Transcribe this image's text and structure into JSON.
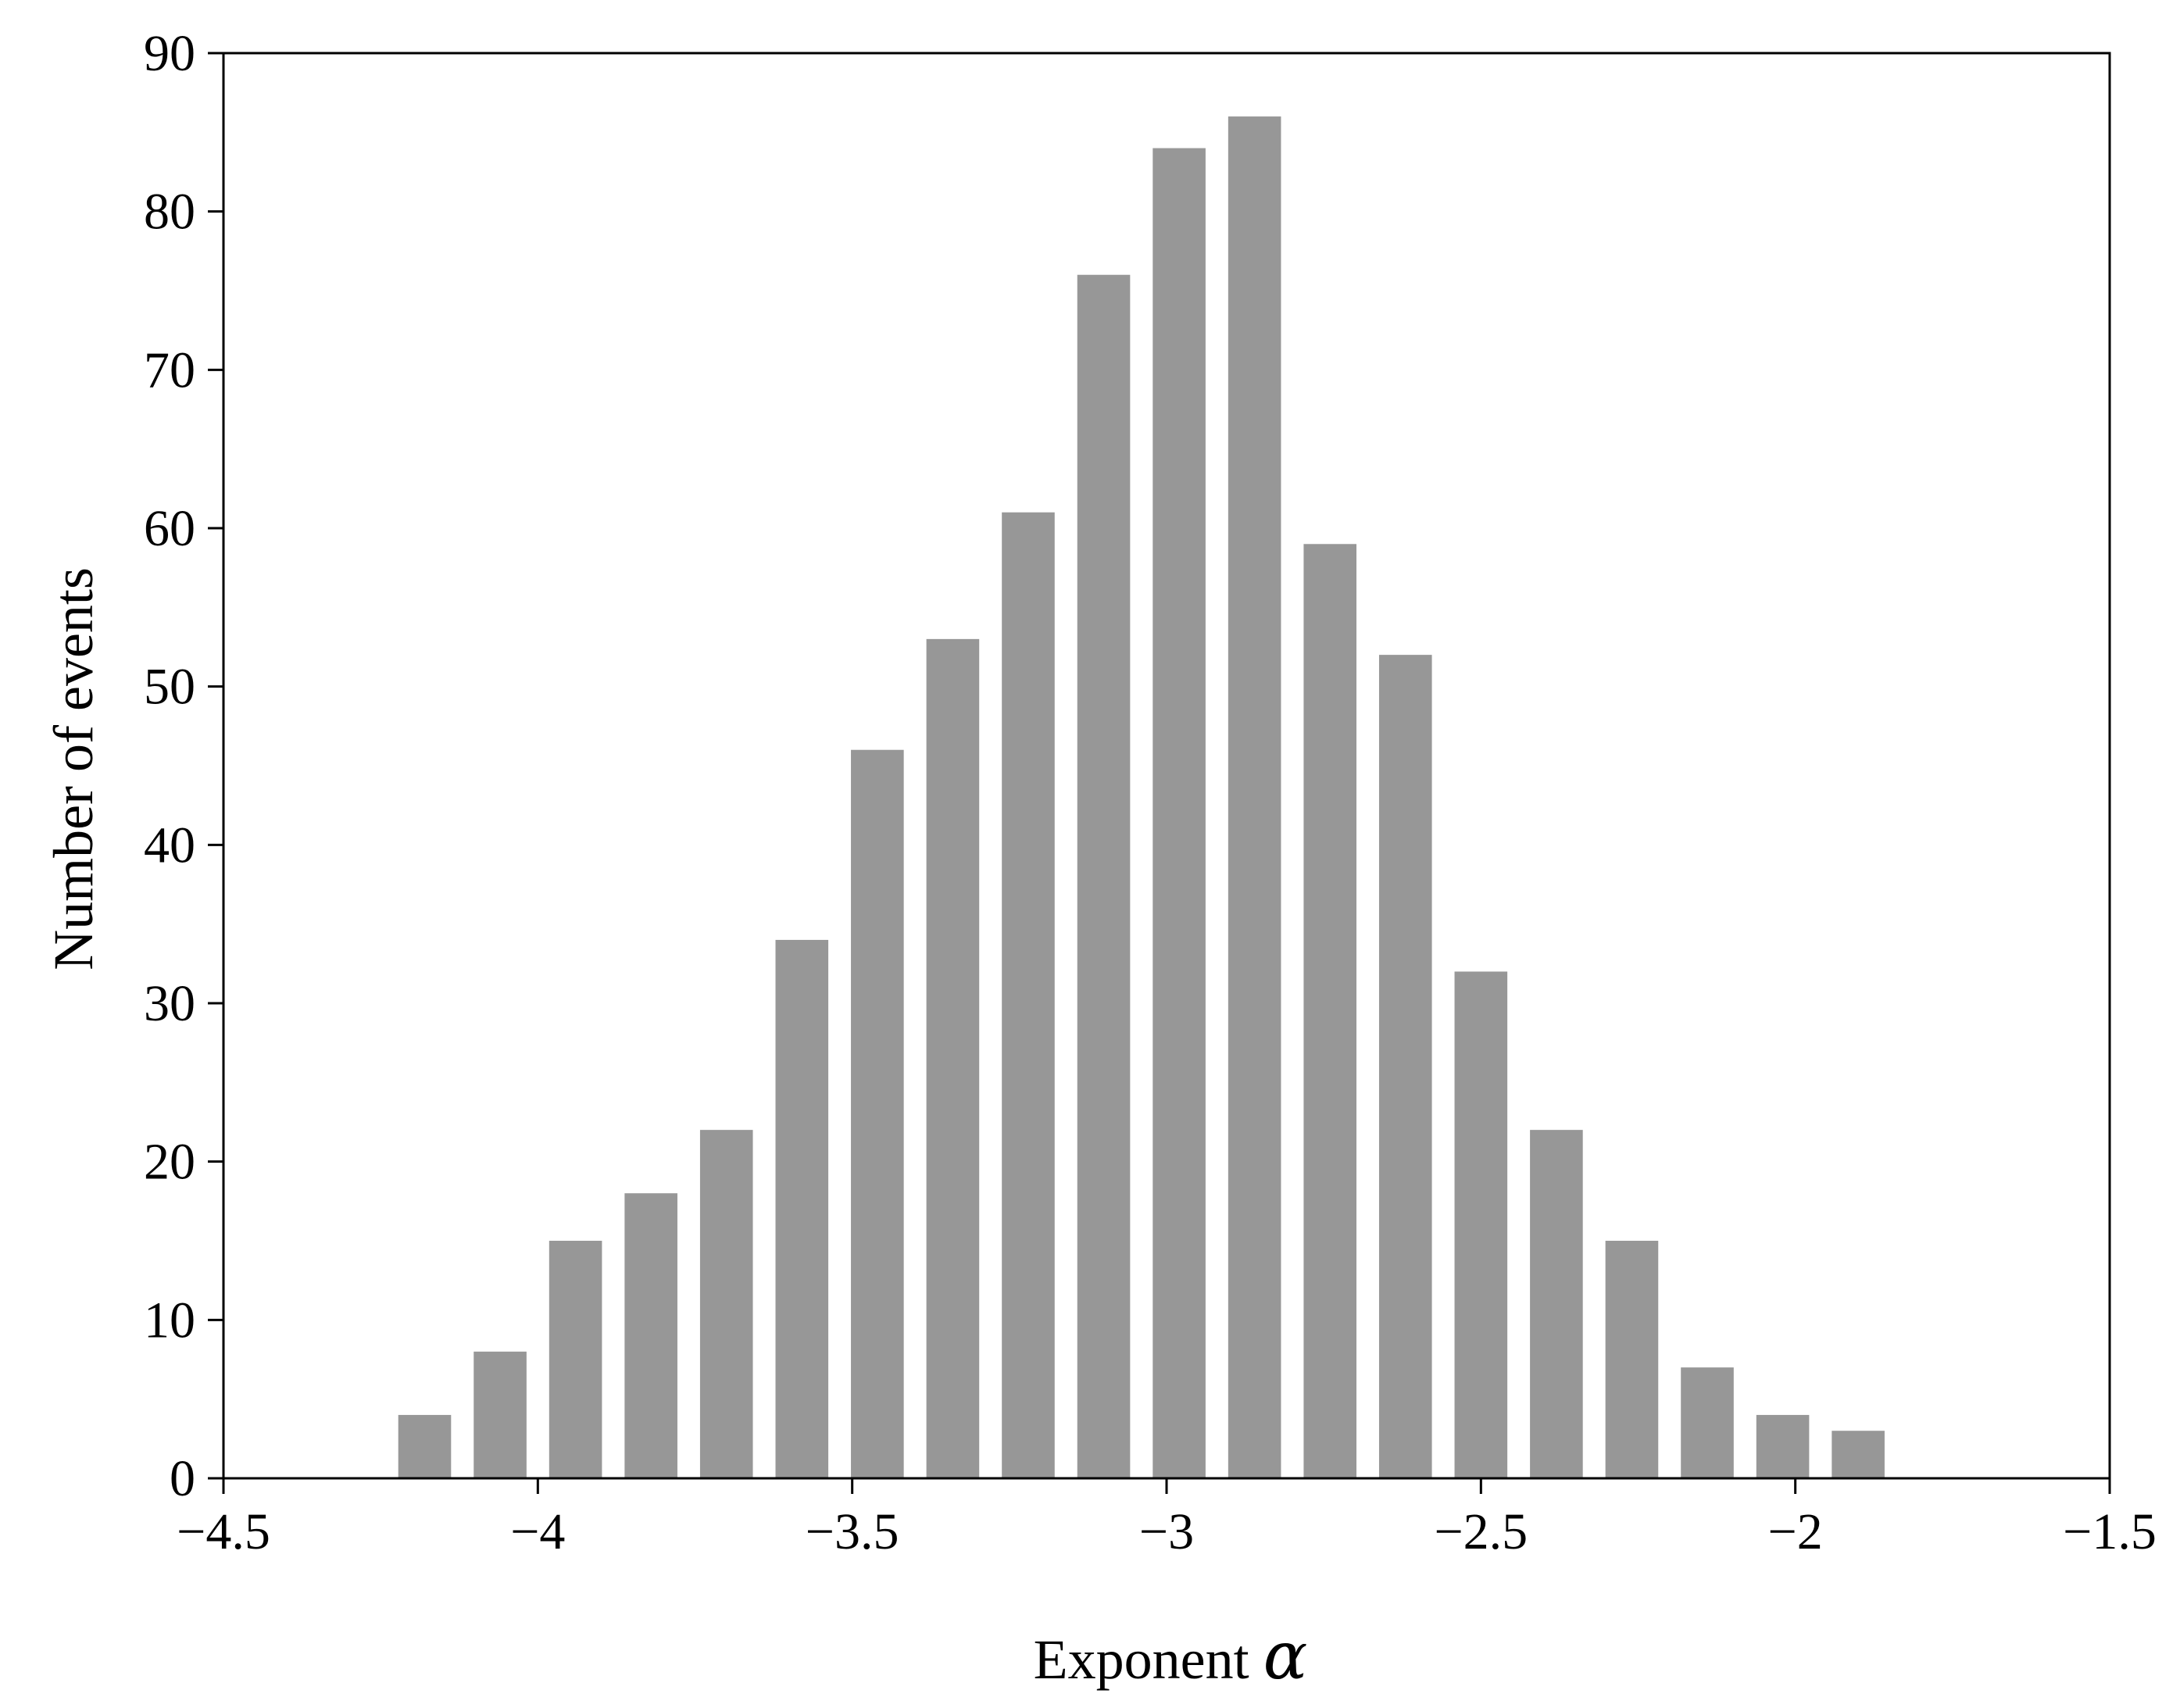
{
  "chart_data": {
    "type": "bar",
    "bar_color": "#979797",
    "x": [
      -4.18,
      -4.06,
      -3.94,
      -3.82,
      -3.7,
      -3.58,
      -3.46,
      -3.34,
      -3.22,
      -3.1,
      -2.98,
      -2.86,
      -2.74,
      -2.62,
      -2.5,
      -2.38,
      -2.26,
      -2.14,
      -2.02,
      -1.9
    ],
    "values": [
      4,
      8,
      15,
      18,
      22,
      34,
      46,
      53,
      61,
      76,
      84,
      86,
      59,
      52,
      32,
      22,
      15,
      7,
      4,
      3
    ],
    "bin_width": 0.12,
    "xlim": [
      -4.5,
      -1.5
    ],
    "ylim": [
      0,
      90
    ],
    "xticks": [
      -4.5,
      -4,
      -3.5,
      -3,
      -2.5,
      -2,
      -1.5
    ],
    "xtick_labels": [
      "−4.5",
      "−4",
      "−3.5",
      "−3",
      "−2.5",
      "−2",
      "−1.5"
    ],
    "yticks": [
      0,
      10,
      20,
      30,
      40,
      50,
      60,
      70,
      80,
      90
    ],
    "ytick_labels": [
      "0",
      "10",
      "20",
      "30",
      "40",
      "50",
      "60",
      "70",
      "80",
      "90"
    ],
    "xlabel": "Exponent",
    "xlabel_symbol": "α",
    "ylabel": "Number of events",
    "grid": false
  }
}
